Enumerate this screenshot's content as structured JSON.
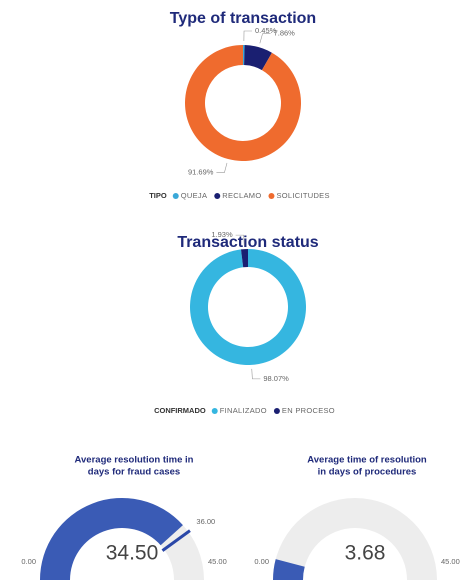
{
  "chart_data": [
    {
      "type": "donut",
      "title": "Type of transaction",
      "legend_title": "TIPO",
      "categories": [
        "QUEJA",
        "RECLAMO",
        "SOLICITUDES"
      ],
      "values": [
        0.45,
        7.86,
        91.69
      ],
      "value_labels": [
        "0.45%",
        "7.86%",
        "91.69%"
      ],
      "colors": [
        "#3aa8d8",
        "#1a1f71",
        "#ef6b2e"
      ]
    },
    {
      "type": "donut",
      "title": "Transaction status",
      "legend_title": "CONFIRMADO",
      "categories": [
        "FINALIZADO",
        "EN PROCESO"
      ],
      "values": [
        98.07,
        1.93
      ],
      "value_labels": [
        "98.07%",
        "1.93%"
      ],
      "colors": [
        "#35b6e0",
        "#1a1f71"
      ]
    },
    {
      "type": "gauge",
      "title": [
        "Average resolution time in",
        "days for fraud cases"
      ],
      "values": [
        34.5
      ],
      "value_labels": [
        "34.50"
      ],
      "color": "#3a5bb5",
      "ylim": [
        0,
        45
      ],
      "yticks": [
        {
          "value": 0,
          "label": "0.00"
        },
        {
          "value": 45,
          "label": "45.00"
        }
      ],
      "target": {
        "value": 36,
        "label": "36.00"
      }
    },
    {
      "type": "gauge",
      "title": [
        "Average time of resolution",
        "in days of procedures"
      ],
      "values": [
        3.68
      ],
      "value_labels": [
        "3.68"
      ],
      "color": "#3a5bb5",
      "ylim": [
        0,
        45
      ],
      "yticks": [
        {
          "value": 0,
          "label": "0.00"
        },
        {
          "value": 45,
          "label": "45.00"
        }
      ]
    }
  ]
}
